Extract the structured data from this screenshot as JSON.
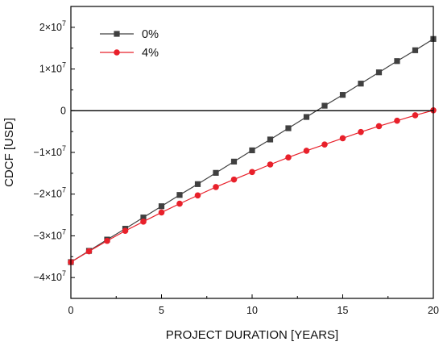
{
  "chart_data": {
    "type": "line",
    "xlabel": "PROJECT DURATION [YEARS]",
    "ylabel": "CDCF [USD]",
    "xlim": [
      0,
      20
    ],
    "ylim": [
      -45000000,
      25000000
    ],
    "xticks": [
      0,
      5,
      10,
      15,
      20
    ],
    "xtick_labels": [
      "0",
      "5",
      "10",
      "15",
      "20"
    ],
    "yticks": [
      -40000000,
      -30000000,
      -20000000,
      -10000000,
      0,
      10000000,
      20000000
    ],
    "ytick_labels": [
      {
        "base": "−4×10",
        "exp": "7"
      },
      {
        "base": "−3×10",
        "exp": "7"
      },
      {
        "base": "−2×10",
        "exp": "7"
      },
      {
        "base": "−1×10",
        "exp": "7"
      },
      {
        "base": "0",
        "exp": ""
      },
      {
        "base": "1×10",
        "exp": "7"
      },
      {
        "base": "2×10",
        "exp": "7"
      }
    ],
    "grid": false,
    "legend_position": "top-left",
    "reference_line_y": 0,
    "x": [
      0,
      1,
      2,
      3,
      4,
      5,
      6,
      7,
      8,
      9,
      10,
      11,
      12,
      13,
      14,
      15,
      16,
      17,
      18,
      19,
      20
    ],
    "series": [
      {
        "name": "0%",
        "color": "#404040",
        "marker": "square",
        "values": [
          -36300000,
          -33600000,
          -30900000,
          -28300000,
          -25600000,
          -22900000,
          -20200000,
          -17600000,
          -14900000,
          -12200000,
          -9500000,
          -6900000,
          -4200000,
          -1500000,
          1200000,
          3800000,
          6500000,
          9200000,
          11900000,
          14500000,
          17200000
        ]
      },
      {
        "name": "4%",
        "color": "#e8202a",
        "marker": "circle",
        "values": [
          -36300000,
          -33700000,
          -31200000,
          -28800000,
          -26600000,
          -24400000,
          -22300000,
          -20300000,
          -18300000,
          -16500000,
          -14700000,
          -12900000,
          -11200000,
          -9600000,
          -8100000,
          -6600000,
          -5100000,
          -3700000,
          -2400000,
          -1100000,
          100000
        ]
      }
    ]
  }
}
